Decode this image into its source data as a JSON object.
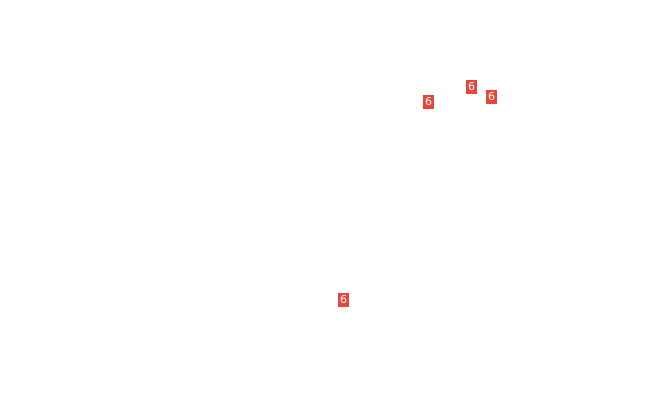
{
  "map": {
    "route_markers": [
      {
        "label": "6",
        "color": "#e8453c"
      },
      {
        "label": "6",
        "color": "#e8453c"
      },
      {
        "label": "6",
        "color": "#e8453c"
      },
      {
        "label": "6",
        "color": "#e8453c"
      }
    ]
  }
}
